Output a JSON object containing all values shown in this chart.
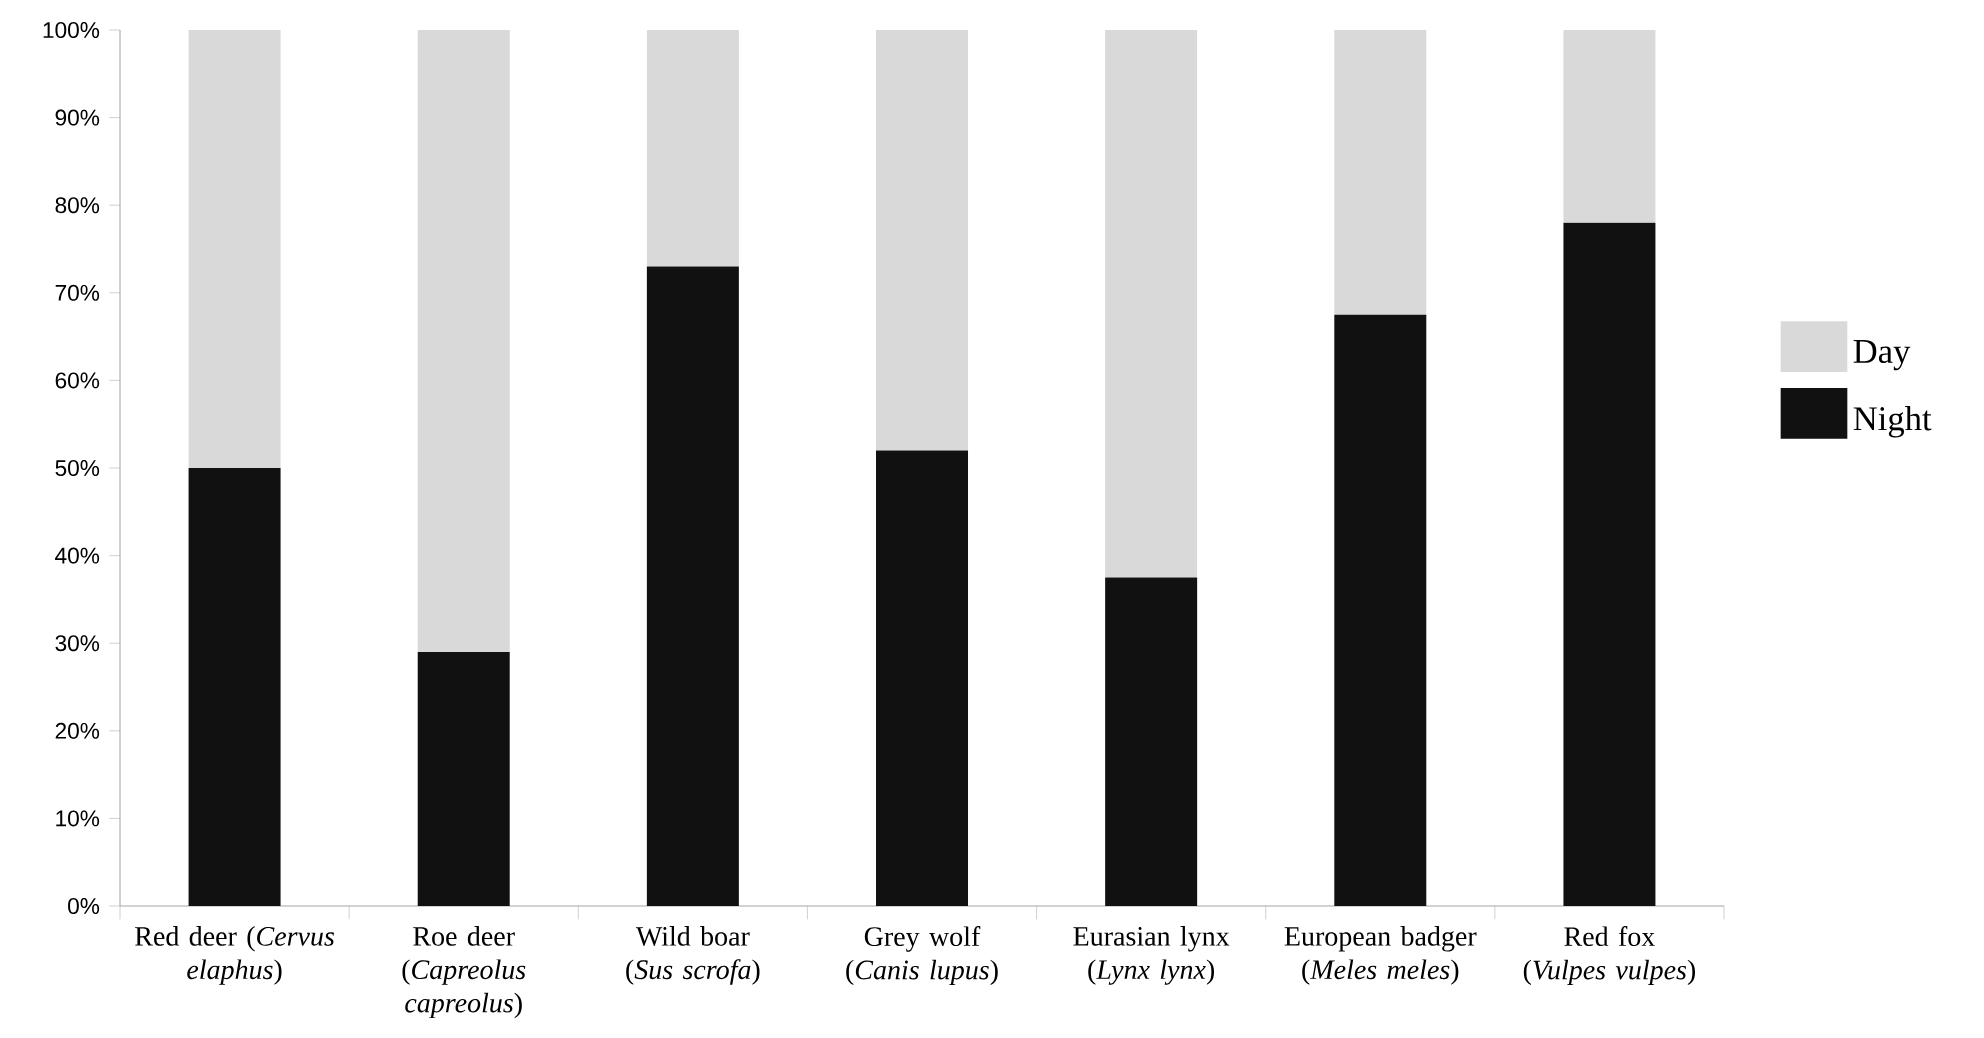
{
  "chart_data": {
    "type": "bar",
    "stacked": true,
    "categories": [
      "Red deer (*Cervus elaphus*)",
      "Roe deer (*Capreolus capreolus*)",
      "Wild boar (*Sus scrofa*)",
      "Grey wolf (*Canis lupus*)",
      "Eurasian lynx (*Lynx lynx*)",
      "European badger (*Meles meles*)",
      "Red fox (*Vulpes vulpes*)"
    ],
    "series": [
      {
        "name": "Night",
        "color": "#111111",
        "values": [
          50,
          29,
          73,
          52,
          37.5,
          67.5,
          78
        ]
      },
      {
        "name": "Day",
        "color": "#d9d9d9",
        "values": [
          50,
          71,
          27,
          48,
          62.5,
          32.5,
          22
        ]
      }
    ],
    "ylim": [
      0,
      100
    ],
    "yticks": [
      {
        "value": 0,
        "label": "0%"
      },
      {
        "value": 10,
        "label": "10%"
      },
      {
        "value": 20,
        "label": "20%"
      },
      {
        "value": 30,
        "label": "30%"
      },
      {
        "value": 40,
        "label": "40%"
      },
      {
        "value": 50,
        "label": "50%"
      },
      {
        "value": 60,
        "label": "60%"
      },
      {
        "value": 70,
        "label": "70%"
      },
      {
        "value": 80,
        "label": "80%"
      },
      {
        "value": 90,
        "label": "90%"
      },
      {
        "value": 100,
        "label": "100%"
      }
    ],
    "legend": "right"
  }
}
